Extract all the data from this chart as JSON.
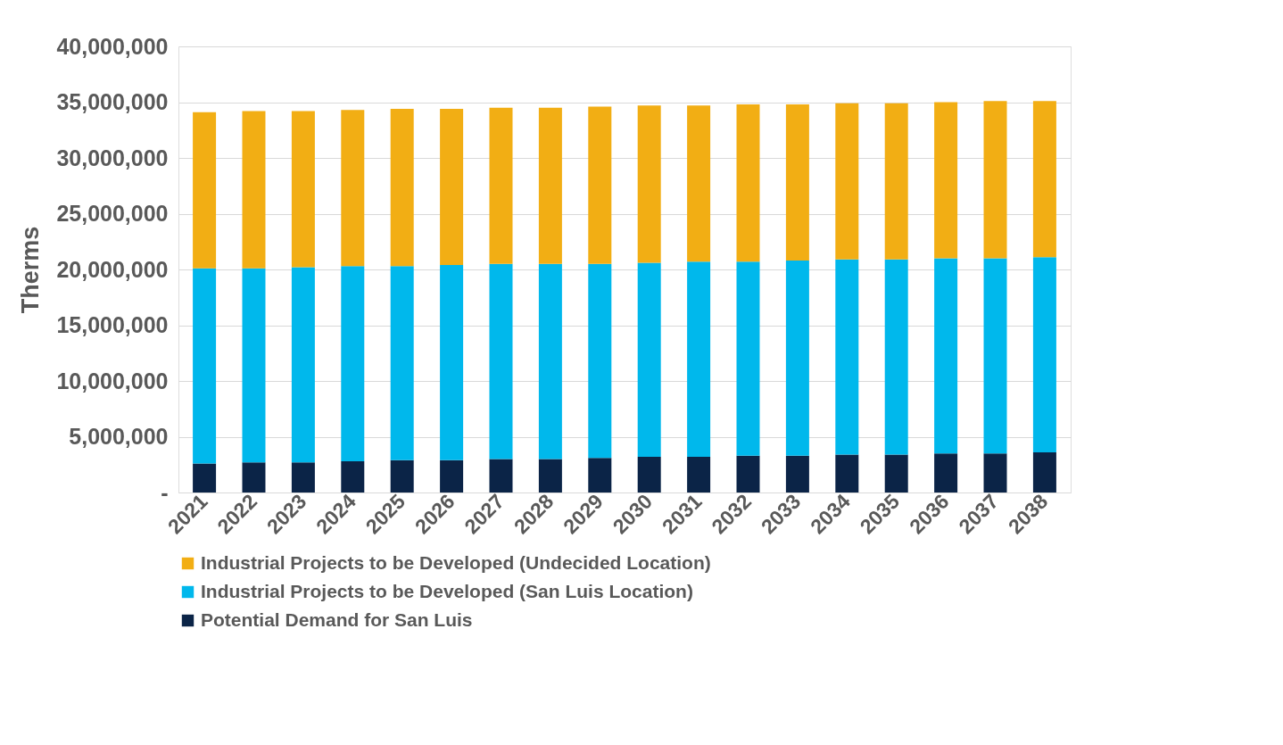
{
  "chart_data": {
    "type": "bar",
    "stacked": true,
    "ylabel": "Therms",
    "categories": [
      "2021",
      "2022",
      "2023",
      "2024",
      "2025",
      "2026",
      "2027",
      "2028",
      "2029",
      "2030",
      "2031",
      "2032",
      "2033",
      "2034",
      "2035",
      "2036",
      "2037",
      "2038"
    ],
    "series": [
      {
        "name": "Potential Demand for San Luis",
        "color": "#0b2447",
        "values": [
          2600000,
          2700000,
          2700000,
          2800000,
          2900000,
          2900000,
          3000000,
          3000000,
          3100000,
          3200000,
          3200000,
          3300000,
          3300000,
          3400000,
          3400000,
          3500000,
          3500000,
          3600000
        ]
      },
      {
        "name": "Industrial Projects to be Developed (San Luis Location)",
        "color": "#00b8ec",
        "values": [
          17500000,
          17400000,
          17500000,
          17500000,
          17400000,
          17500000,
          17500000,
          17500000,
          17400000,
          17400000,
          17500000,
          17400000,
          17500000,
          17500000,
          17500000,
          17500000,
          17500000,
          17500000
        ]
      },
      {
        "name": "Industrial Projects to be Developed (Undecided Location)",
        "color": "#f2ae14",
        "values": [
          14000000,
          14100000,
          14000000,
          14000000,
          14100000,
          14000000,
          14000000,
          14000000,
          14100000,
          14100000,
          14000000,
          14100000,
          14000000,
          14000000,
          14000000,
          14000000,
          14100000,
          14000000
        ]
      }
    ],
    "ylim": [
      0,
      40000000
    ],
    "yticks": [
      {
        "value": 0,
        "label": "-"
      },
      {
        "value": 5000000,
        "label": "5,000,000"
      },
      {
        "value": 10000000,
        "label": "10,000,000"
      },
      {
        "value": 15000000,
        "label": "15,000,000"
      },
      {
        "value": 20000000,
        "label": "20,000,000"
      },
      {
        "value": 25000000,
        "label": "25,000,000"
      },
      {
        "value": 30000000,
        "label": "30,000,000"
      },
      {
        "value": 35000000,
        "label": "35,000,000"
      },
      {
        "value": 40000000,
        "label": "40,000,000"
      }
    ],
    "grid": "y",
    "legend": "bottom"
  }
}
